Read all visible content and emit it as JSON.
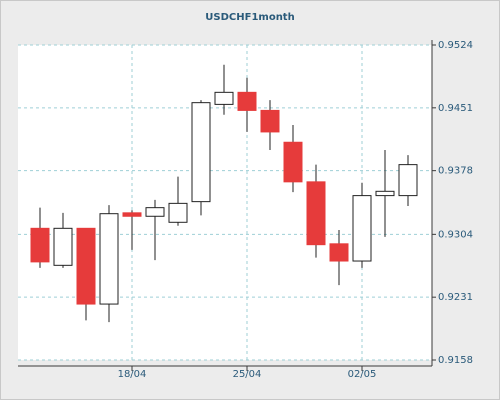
{
  "chart_data": {
    "type": "candlestick",
    "title": "USDCHF1month",
    "categories": [
      null,
      null,
      null,
      null,
      "18/04",
      null,
      null,
      null,
      null,
      "25/04",
      null,
      null,
      null,
      null,
      "02/05",
      null,
      null
    ],
    "open": [
      0.9311,
      0.9268,
      0.9311,
      0.9223,
      0.9329,
      0.9325,
      0.9318,
      0.9342,
      0.9455,
      0.9469,
      0.9448,
      0.9411,
      0.9365,
      0.9293,
      0.9273,
      0.9349,
      0.9349
    ],
    "high": [
      0.9335,
      0.9329,
      0.9311,
      0.9338,
      0.9332,
      0.9344,
      0.9371,
      0.946,
      0.9501,
      0.9486,
      0.946,
      0.9431,
      0.9385,
      0.9309,
      0.9364,
      0.9402,
      0.9396
    ],
    "low": [
      0.9265,
      0.9265,
      0.9204,
      0.9202,
      0.9286,
      0.9274,
      0.9314,
      0.9326,
      0.9443,
      0.9423,
      0.9402,
      0.9353,
      0.9277,
      0.9245,
      0.9265,
      0.9301,
      0.9337
    ],
    "close": [
      0.9272,
      0.9311,
      0.9223,
      0.9328,
      0.9325,
      0.9335,
      0.934,
      0.9457,
      0.9469,
      0.9448,
      0.9423,
      0.9365,
      0.9292,
      0.9273,
      0.9349,
      0.9354,
      0.9385
    ],
    "up_color": "#ffffff",
    "down_color": "#e63b3b",
    "ylim": [
      0.9158,
      0.9524
    ],
    "yticks": [
      0.9158,
      0.9231,
      0.9304,
      0.9378,
      0.9451,
      0.9524
    ],
    "grid": true
  }
}
